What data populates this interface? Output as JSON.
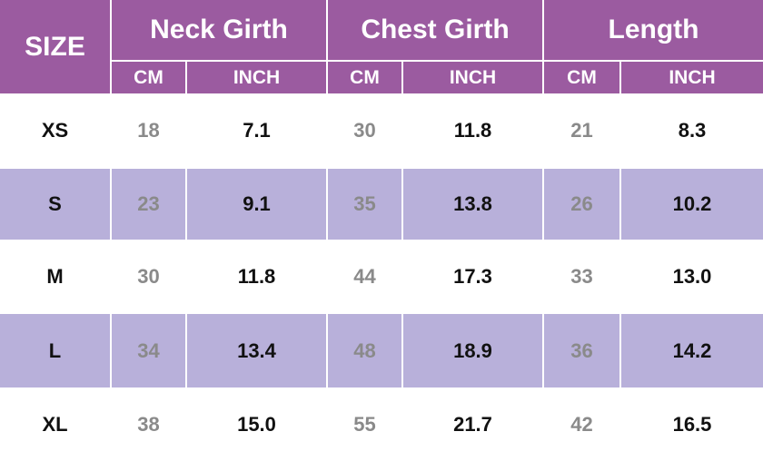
{
  "table": {
    "header": {
      "size": "SIZE",
      "groups": [
        "Neck Girth",
        "Chest Girth",
        "Length"
      ],
      "units": [
        "CM",
        "INCH",
        "CM",
        "INCH",
        "CM",
        "INCH"
      ]
    },
    "rows": [
      [
        "XS",
        "18",
        "7.1",
        "30",
        "11.8",
        "21",
        "8.3"
      ],
      [
        "S",
        "23",
        "9.1",
        "35",
        "13.8",
        "26",
        "10.2"
      ],
      [
        "M",
        "30",
        "11.8",
        "44",
        "17.3",
        "33",
        "13.0"
      ],
      [
        "L",
        "34",
        "13.4",
        "48",
        "18.9",
        "36",
        "14.2"
      ],
      [
        "XL",
        "38",
        "15.0",
        "55",
        "21.7",
        "42",
        "16.5"
      ]
    ]
  }
}
